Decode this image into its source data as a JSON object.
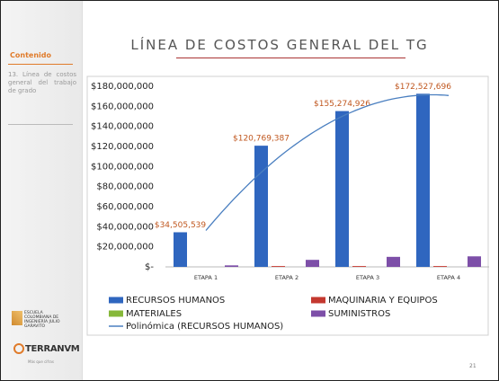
{
  "sidebar": {
    "heading": "Contenido",
    "item": "13. Línea de costos general del trabajo de grado",
    "logo_text": "Escuela Colombiana de Ingeniería Julio Garavito",
    "brand": "TERRANVM",
    "brand_sub": "Más que cifras"
  },
  "page_number": "21",
  "chart_data": {
    "type": "bar",
    "title": "LÍNEA DE COSTOS GENERAL DEL TG",
    "categories": [
      "ETAPA 1",
      "ETAPA 2",
      "ETAPA 3",
      "ETAPA 4"
    ],
    "series": [
      {
        "name": "RECURSOS HUMANOS",
        "color": "#2f66bf",
        "values": [
          34505539,
          120769387,
          155274926,
          172527696
        ],
        "value_labels": [
          "$34,505,539",
          "$120,769,387",
          "$155,274,926",
          "$172,527,696"
        ]
      },
      {
        "name": "MAQUINARIA Y EQUIPOS",
        "color": "#c4382f",
        "values": [
          0,
          800000,
          800000,
          800000
        ]
      },
      {
        "name": "MATERIALES",
        "color": "#86b83a",
        "values": [
          0,
          0,
          0,
          0
        ]
      },
      {
        "name": "SUMINISTROS",
        "color": "#7d4fa8",
        "values": [
          1500000,
          7000000,
          10000000,
          10500000
        ]
      }
    ],
    "trendline": {
      "name": "Polinómica (RECURSOS HUMANOS)",
      "series": 0,
      "order": 2,
      "color": "#4a7fc0"
    },
    "ylim": [
      0,
      180000000
    ],
    "yticks": [
      {
        "value": 0,
        "label": "$-"
      },
      {
        "value": 20000000,
        "label": "$20,000,000"
      },
      {
        "value": 40000000,
        "label": "$40,000,000"
      },
      {
        "value": 60000000,
        "label": "$60,000,000"
      },
      {
        "value": 80000000,
        "label": "$80,000,000"
      },
      {
        "value": 100000000,
        "label": "$100,000,000"
      },
      {
        "value": 120000000,
        "label": "$120,000,000"
      },
      {
        "value": 140000000,
        "label": "$140,000,000"
      },
      {
        "value": 160000000,
        "label": "$160,000,000"
      },
      {
        "value": 180000000,
        "label": "$180,000,000"
      }
    ],
    "grid": false,
    "label_color": "#c0571f"
  }
}
